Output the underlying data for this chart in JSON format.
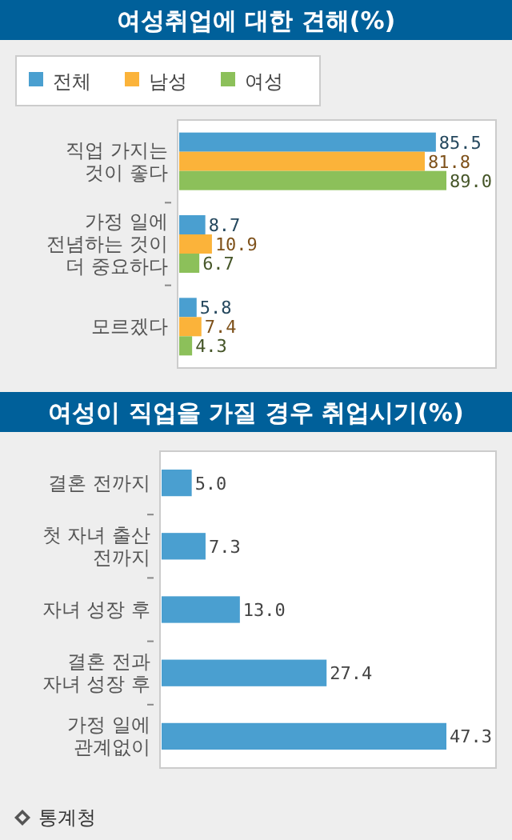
{
  "chart_data": [
    {
      "type": "bar",
      "orientation": "horizontal",
      "title": "여성취업에 대한 견해(%)",
      "categories": [
        "직업 가지는 것이 좋다",
        "가정 일에 전념하는 것이 더 중요하다",
        "모르겠다"
      ],
      "series": [
        {
          "name": "전체",
          "color": "#4a9fd0",
          "values": [
            85.5,
            8.7,
            5.8
          ],
          "value_labels": [
            "85.5",
            "8.7",
            "5.8"
          ]
        },
        {
          "name": "남성",
          "color": "#fbb33a",
          "values": [
            81.8,
            10.9,
            7.4
          ],
          "value_labels": [
            "81.8",
            "10.9",
            "7.4"
          ]
        },
        {
          "name": "여성",
          "color": "#8cc05a",
          "values": [
            89,
            6.7,
            4.3
          ],
          "value_labels": [
            "89.0",
            "6.7",
            "4.3"
          ]
        }
      ],
      "legend": "top left"
    },
    {
      "type": "bar",
      "orientation": "horizontal",
      "title": "여성이 직업을 가질 경우 취업시기(%)",
      "categories": [
        "결혼 전까지",
        "첫 자녀 출산 전까지",
        "자녀 성장 후",
        "결혼 전과 자녀 성장 후",
        "가정 일에 관계없이"
      ],
      "series": [
        {
          "color": "#4a9fd0",
          "values": [
            5,
            7.3,
            13,
            27.4,
            47.3
          ],
          "value_labels": [
            "5.0",
            "7.3",
            "13.0",
            "27.4",
            "47.3"
          ]
        }
      ],
      "annotations": [
        "통계청"
      ]
    }
  ]
}
